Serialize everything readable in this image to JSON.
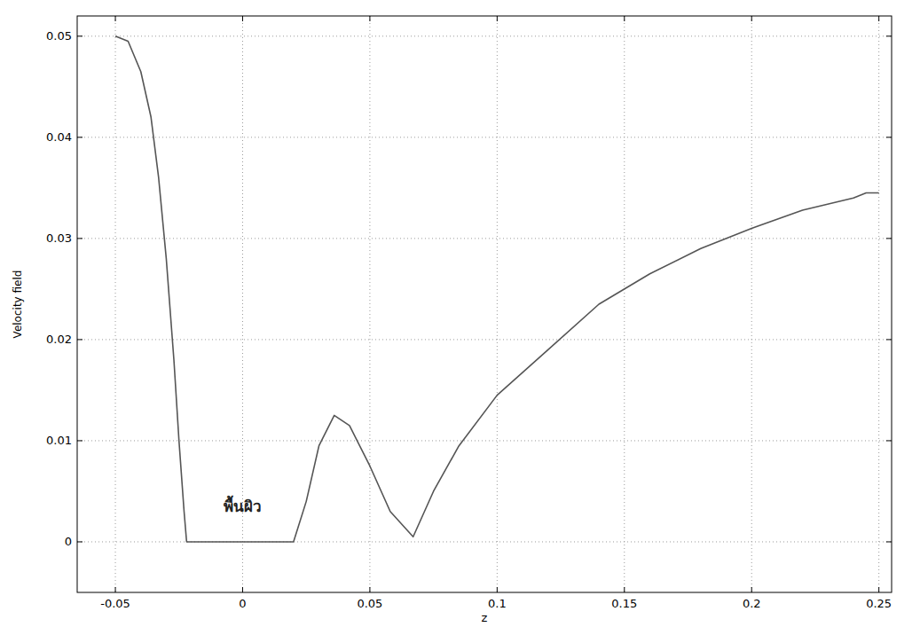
{
  "chart_data": {
    "type": "line",
    "x_label": "z",
    "y_label": "Velocity field",
    "x": [
      -0.05,
      -0.045,
      -0.04,
      -0.036,
      -0.033,
      -0.03,
      -0.027,
      -0.025,
      -0.023,
      -0.022,
      0.02,
      0.025,
      0.03,
      0.036,
      0.042,
      0.05,
      0.058,
      0.067,
      0.075,
      0.085,
      0.1,
      0.12,
      0.14,
      0.16,
      0.18,
      0.2,
      0.22,
      0.24,
      0.245,
      0.25
    ],
    "series": [
      {
        "name": "Velocity field",
        "color": "#555555",
        "line_style": "solid",
        "values": [
          0.05,
          0.0495,
          0.0465,
          0.042,
          0.036,
          0.028,
          0.018,
          0.01,
          0.003,
          0,
          0,
          0.004,
          0.0095,
          0.0125,
          0.0115,
          0.0075,
          0.003,
          0.0005,
          0.005,
          0.0095,
          0.0145,
          0.019,
          0.0235,
          0.0265,
          0.029,
          0.031,
          0.0328,
          0.034,
          0.0345,
          0.0345
        ]
      }
    ],
    "xlim": [
      -0.065,
      0.255
    ],
    "ylim": [
      -0.005,
      0.052
    ],
    "xticks": [
      -0.05,
      0,
      0.05,
      0.1,
      0.15,
      0.2,
      0.25
    ],
    "yticks": [
      0,
      0.01,
      0.02,
      0.03,
      0.04,
      0.05
    ],
    "grid": true,
    "annotations": [
      {
        "text": "พื้นผิว",
        "x": 0,
        "y": 0.003
      }
    ]
  }
}
